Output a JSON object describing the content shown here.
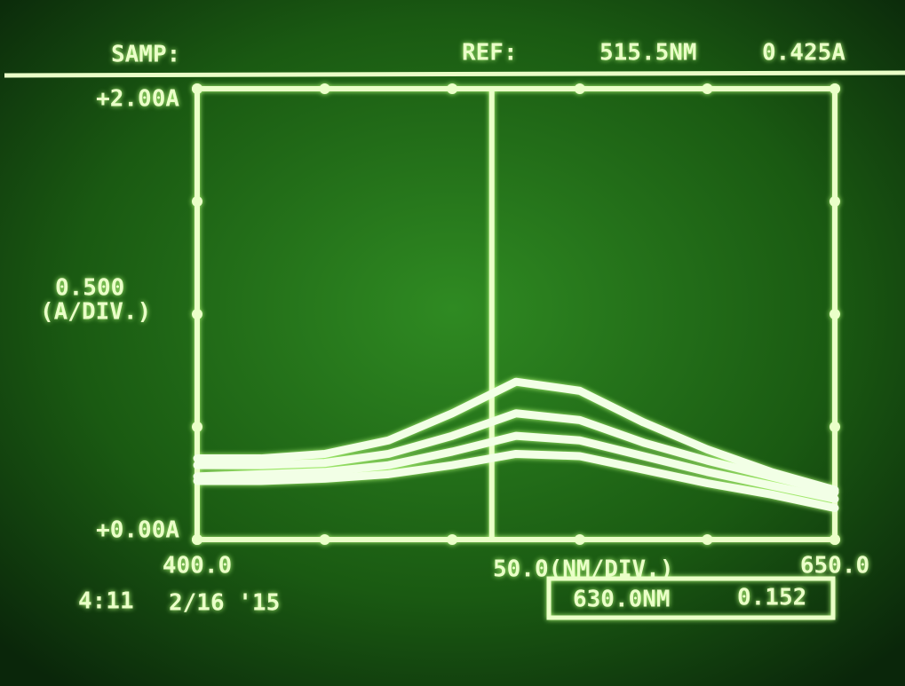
{
  "chart_data": {
    "type": "line",
    "sample_label": "SAMP:",
    "reference": {
      "label": "REF:",
      "wavelength": {
        "value": 515.5,
        "label": "515.5NM"
      },
      "absorbance": {
        "value": 0.425,
        "label": "0.425A"
      }
    },
    "y_scale_label": [
      "0.500",
      "(A/DIV.)"
    ],
    "x_scale_label": "50.0(NM/DIV.)",
    "timestamp": [
      "4:11",
      "2/16 '15"
    ],
    "cursor": {
      "wavelength": "630.0NM",
      "absorbance": "0.152"
    },
    "x": [
      400,
      425,
      450,
      475,
      500,
      525,
      550,
      575,
      600,
      625,
      650
    ],
    "series": [
      {
        "color": "#f2ffe6",
        "values": [
          0.36,
          0.36,
          0.38,
          0.44,
          0.56,
          0.7,
          0.66,
          0.52,
          0.4,
          0.3,
          0.22
        ]
      },
      {
        "color": "#f2ffe6",
        "values": [
          0.33,
          0.33,
          0.34,
          0.38,
          0.46,
          0.56,
          0.53,
          0.43,
          0.35,
          0.28,
          0.21
        ]
      },
      {
        "color": "#f2ffe6",
        "values": [
          0.28,
          0.29,
          0.3,
          0.33,
          0.39,
          0.46,
          0.44,
          0.37,
          0.3,
          0.24,
          0.18
        ]
      },
      {
        "color": "#f2ffe6",
        "values": [
          0.26,
          0.26,
          0.27,
          0.29,
          0.33,
          0.38,
          0.37,
          0.31,
          0.25,
          0.2,
          0.14
        ]
      }
    ],
    "xlim": [
      400,
      650
    ],
    "ylim": [
      0,
      2
    ],
    "xticks": [
      {
        "value": 400,
        "label": "400.0"
      },
      450,
      500,
      550,
      600,
      {
        "value": 650,
        "label": "650.0"
      }
    ],
    "yticks": [
      {
        "value": 0,
        "label": "+0.00A"
      },
      0.5,
      1,
      1.5,
      {
        "value": 2,
        "label": "+2.00A"
      }
    ]
  }
}
